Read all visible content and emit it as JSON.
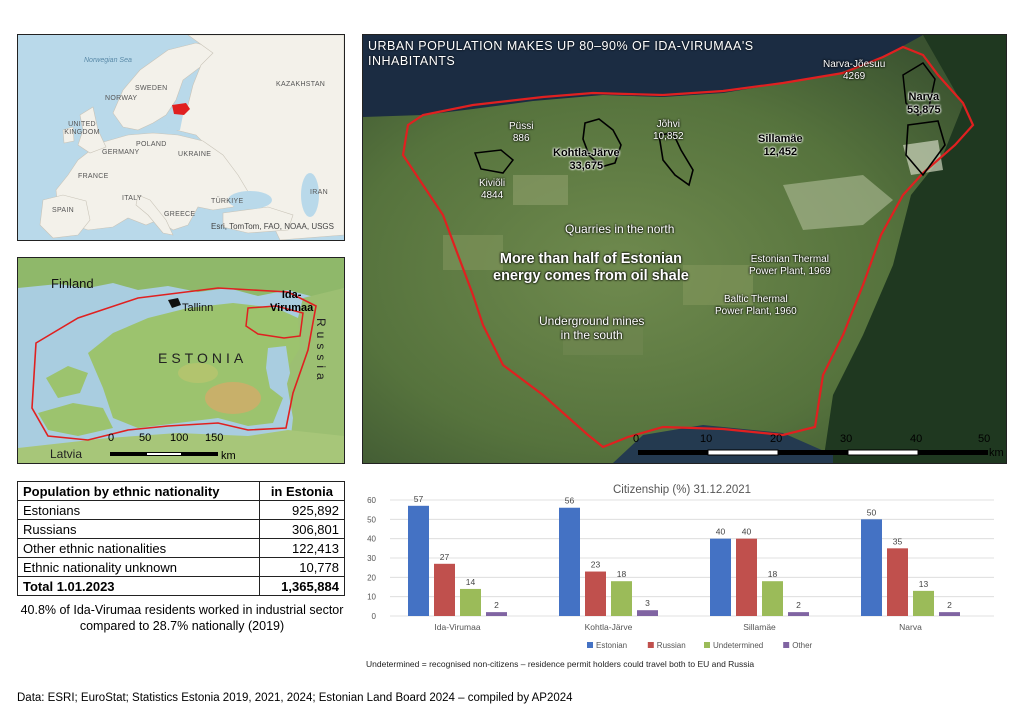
{
  "europe_map": {
    "labels": {
      "norwegian_sea": "Norwegian Sea",
      "sweden": "SWEDEN",
      "norway": "NORWAY",
      "kazakhstan": "KAZAKHSTAN",
      "united_kingdom": "UNITED KINGDOM",
      "poland": "POLAND",
      "germany": "GERMANY",
      "ukraine": "UKRAINE",
      "france": "FRANCE",
      "italy": "ITALY",
      "turkiye": "TÜRKIYE",
      "iran": "IRAN",
      "spain": "SPAIN",
      "greece": "GREECE"
    },
    "attribution": "Esri, TomTom, FAO, NOAA, USGS",
    "highlight_color": "#e02020"
  },
  "estonia_map": {
    "labels": {
      "finland": "Finland",
      "tallinn": "Tallinn",
      "ida_virumaa_line1": "Ida-",
      "ida_virumaa_line2": "Virumaa",
      "estonia": "ESTONIA",
      "russia": "Russia",
      "latvia": "Latvia"
    },
    "scale_ticks": [
      "0",
      "50",
      "100",
      "150"
    ],
    "scale_unit": "km",
    "border_color": "#e02020"
  },
  "sat_map": {
    "title": "URBAN POPULATION MAKES UP 80–90% OF IDA-VIRUMAA'S INHABITANTS",
    "cities": {
      "narva_joesuu": {
        "name": "Narva-Jõesuu",
        "pop": "4269"
      },
      "narva": {
        "name": "Narva",
        "pop": "53,875"
      },
      "pussi": {
        "name": "Püssi",
        "pop": "886"
      },
      "johvi": {
        "name": "Jõhvi",
        "pop": "10,852"
      },
      "kohtla_jarve": {
        "name": "Kohtla-Järve",
        "pop": "33,675"
      },
      "sillamae": {
        "name": "Sillamäe",
        "pop": "12,452"
      },
      "kivioli": {
        "name": "Kiviõli",
        "pop": "4844"
      }
    },
    "annotations": {
      "quarries": "Quarries in the north",
      "energy_line1": "More than half of Estonian",
      "energy_line2": "energy comes from oil shale",
      "estonian_plant_line1": "Estonian Thermal",
      "estonian_plant_line2": "Power Plant, 1969",
      "baltic_plant_line1": "Baltic Thermal",
      "baltic_plant_line2": "Power Plant, 1960",
      "mines_line1": "Underground mines",
      "mines_line2": "in the south"
    },
    "scale_ticks": [
      "0",
      "10",
      "20",
      "30",
      "40",
      "50"
    ],
    "scale_unit": "km",
    "border_color": "#e02020"
  },
  "population_table": {
    "headers": [
      "Population by ethnic nationality",
      "in Estonia"
    ],
    "rows": [
      [
        "Estonians",
        "925,892"
      ],
      [
        "Russians",
        "306,801"
      ],
      [
        "Other ethnic nationalities",
        "122,413"
      ],
      [
        "Ethnic nationality unknown",
        "10,778"
      ]
    ],
    "total": [
      "Total 1.01.2023",
      "1,365,884"
    ]
  },
  "industry_note": "40.8% of Ida-Virumaa residents worked in industrial sector compared to 28.7% nationally (2019)",
  "chart_data": {
    "type": "bar",
    "title": "Citizenship (%) 31.12.2021",
    "categories": [
      "Ida-Virumaa",
      "Kohtla-Järve",
      "Sillamäe",
      "Narva"
    ],
    "series": [
      {
        "name": "Estonian",
        "values": [
          57,
          56,
          40,
          50
        ],
        "color": "#4472c4"
      },
      {
        "name": "Russian",
        "values": [
          27,
          23,
          40,
          35
        ],
        "color": "#c0504d"
      },
      {
        "name": "Undetermined",
        "values": [
          14,
          18,
          18,
          13
        ],
        "color": "#9bbb59"
      },
      {
        "name": "Other",
        "values": [
          2,
          3,
          2,
          2
        ],
        "color": "#8064a2"
      }
    ],
    "ylim": [
      0,
      60
    ],
    "yticks": [
      0,
      10,
      20,
      30,
      40,
      50,
      60
    ],
    "grid": true,
    "legend_position": "bottom",
    "data_labels": true,
    "footnote": "Undetermined = recognised non-citizens – residence permit holders could travel both to EU and Russia"
  },
  "footer": "Data: ESRI; EuroStat; Statistics Estonia 2019, 2021, 2024; Estonian Land Board 2024 – compiled by AP2024"
}
